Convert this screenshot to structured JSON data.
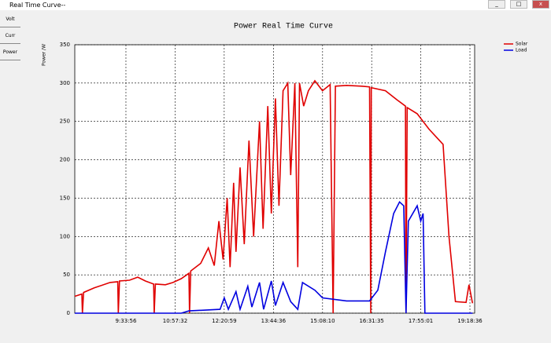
{
  "window": {
    "title": "Real Time Curve--"
  },
  "sidebar": {
    "buttons": [
      "Volt",
      "Curr",
      "Power"
    ]
  },
  "chart_data": {
    "type": "line",
    "title": "Power Real Time Curve",
    "y_label": "Power /W",
    "xlim": [
      487,
      1166.6
    ],
    "ylim": [
      0,
      350
    ],
    "xticks": [
      {
        "value": 573.93,
        "label": "9:33:56"
      },
      {
        "value": 657.53,
        "label": "10:57:32"
      },
      {
        "value": 740.98,
        "label": "12:20:59"
      },
      {
        "value": 824.6,
        "label": "13:44:36"
      },
      {
        "value": 908.17,
        "label": "15:08:10"
      },
      {
        "value": 991.58,
        "label": "16:31:35"
      },
      {
        "value": 1075.02,
        "label": "17:55:01"
      },
      {
        "value": 1158.6,
        "label": "19:18:36"
      }
    ],
    "yticks": [
      0,
      50,
      100,
      150,
      200,
      250,
      300,
      350
    ],
    "grid": true,
    "legend": "top-right",
    "series": [
      {
        "name": "Solar",
        "color": "#e00000",
        "x": [
          487,
          499,
          500,
          502,
          520,
          547,
          560,
          561,
          563,
          580,
          594,
          607,
          621,
          622,
          624,
          641,
          654,
          668,
          681,
          682,
          684,
          701,
          714,
          724,
          732,
          739,
          746,
          751,
          757,
          761,
          768,
          775,
          783,
          791,
          801,
          807,
          815,
          821,
          828,
          834,
          841,
          849,
          854,
          861,
          866,
          869,
          876,
          884,
          895,
          908,
          921,
          926,
          930,
          949,
          975,
          988,
          990,
          991,
          1015,
          1035,
          1049,
          1050,
          1052,
          1069,
          1089,
          1107,
          1113,
          1123,
          1134,
          1152,
          1157,
          1163
        ],
        "values": [
          22,
          25,
          0,
          27,
          33,
          40,
          41,
          0,
          42,
          43,
          47,
          42,
          38,
          0,
          38,
          37,
          40,
          45,
          52,
          0,
          55,
          65,
          85,
          62,
          120,
          70,
          150,
          60,
          170,
          80,
          190,
          90,
          225,
          100,
          250,
          110,
          270,
          130,
          280,
          140,
          290,
          300,
          180,
          300,
          60,
          300,
          270,
          290,
          303,
          290,
          298,
          0,
          296,
          297,
          296,
          295,
          0,
          294,
          290,
          278,
          270,
          0,
          268,
          260,
          240,
          225,
          220,
          100,
          15,
          14,
          37,
          13
        ]
      },
      {
        "name": "Load",
        "color": "#0000e0",
        "x": [
          487,
          668,
          681,
          734,
          741,
          748,
          761,
          768,
          781,
          788,
          801,
          808,
          821,
          828,
          841,
          854,
          866,
          874,
          895,
          908,
          949,
          988,
          1002,
          1015,
          1029,
          1039,
          1046,
          1050,
          1054,
          1069,
          1075,
          1079,
          1082,
          1163
        ],
        "values": [
          0,
          0,
          3,
          5,
          20,
          5,
          28,
          5,
          35,
          8,
          40,
          5,
          42,
          10,
          40,
          15,
          5,
          40,
          30,
          20,
          16,
          16,
          30,
          80,
          130,
          145,
          140,
          0,
          120,
          140,
          120,
          130,
          0,
          0
        ]
      }
    ]
  }
}
